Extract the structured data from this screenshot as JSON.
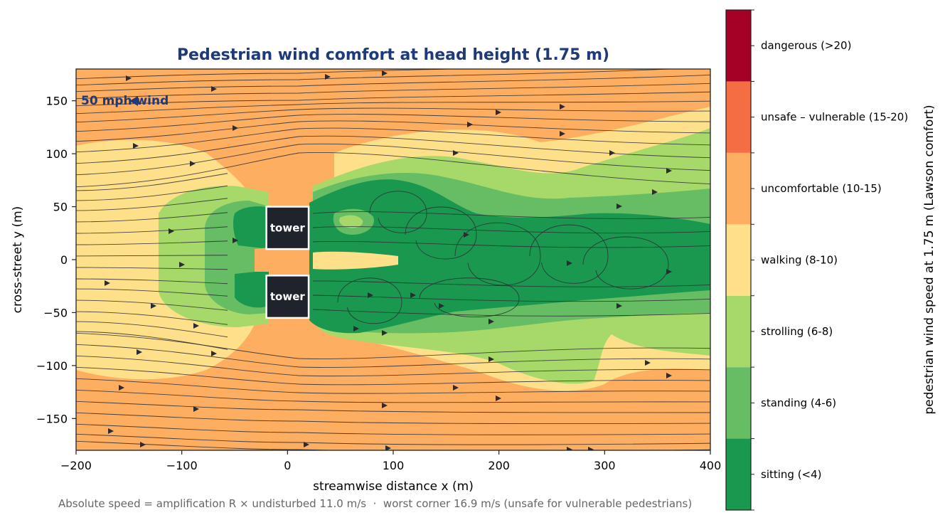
{
  "chart_data": {
    "type": "heatmap",
    "title": "Pedestrian wind comfort at head height (1.75 m)",
    "xlabel": "streamwise distance x (m)",
    "ylabel": "cross-street y (m)",
    "xlim": [
      -200,
      400
    ],
    "ylim": [
      -180,
      180
    ],
    "xticks": [
      -200,
      -100,
      0,
      100,
      200,
      300,
      400
    ],
    "xtick_labels": [
      "−200",
      "−100",
      "0",
      "100",
      "200",
      "300",
      "400"
    ],
    "yticks": [
      150,
      100,
      50,
      0,
      -50,
      -100,
      -150
    ],
    "ytick_labels": [
      "150",
      "100",
      "50",
      "0",
      "−50",
      "−100",
      "−150"
    ],
    "wind_label": "50 mph wind",
    "buildings": [
      {
        "label": "tower",
        "x": [
          -20,
          20
        ],
        "y": [
          10,
          50
        ]
      },
      {
        "label": "tower",
        "x": [
          -20,
          20
        ],
        "y": [
          -55,
          -15
        ]
      }
    ],
    "colorbar": {
      "label": "pedestrian wind speed at 1.75 m (Lawson comfort)",
      "categories": [
        {
          "label": "sitting (<4)",
          "color": "#1a9850"
        },
        {
          "label": "standing (4-6)",
          "color": "#66bd63"
        },
        {
          "label": "strolling (6-8)",
          "color": "#a6d96a"
        },
        {
          "label": "walking (8-10)",
          "color": "#fee08b"
        },
        {
          "label": "uncomfortable (10-15)",
          "color": "#fdae61"
        },
        {
          "label": "unsafe – vulnerable (15-20)",
          "color": "#f46d43"
        },
        {
          "label": "dangerous (>20)",
          "color": "#a50026"
        }
      ]
    },
    "footnote": "Absolute speed = amplification R × undisturbed 11.0 m/s  ·  worst corner 16.9 m/s (unsafe for vulnerable pedestrians)"
  }
}
